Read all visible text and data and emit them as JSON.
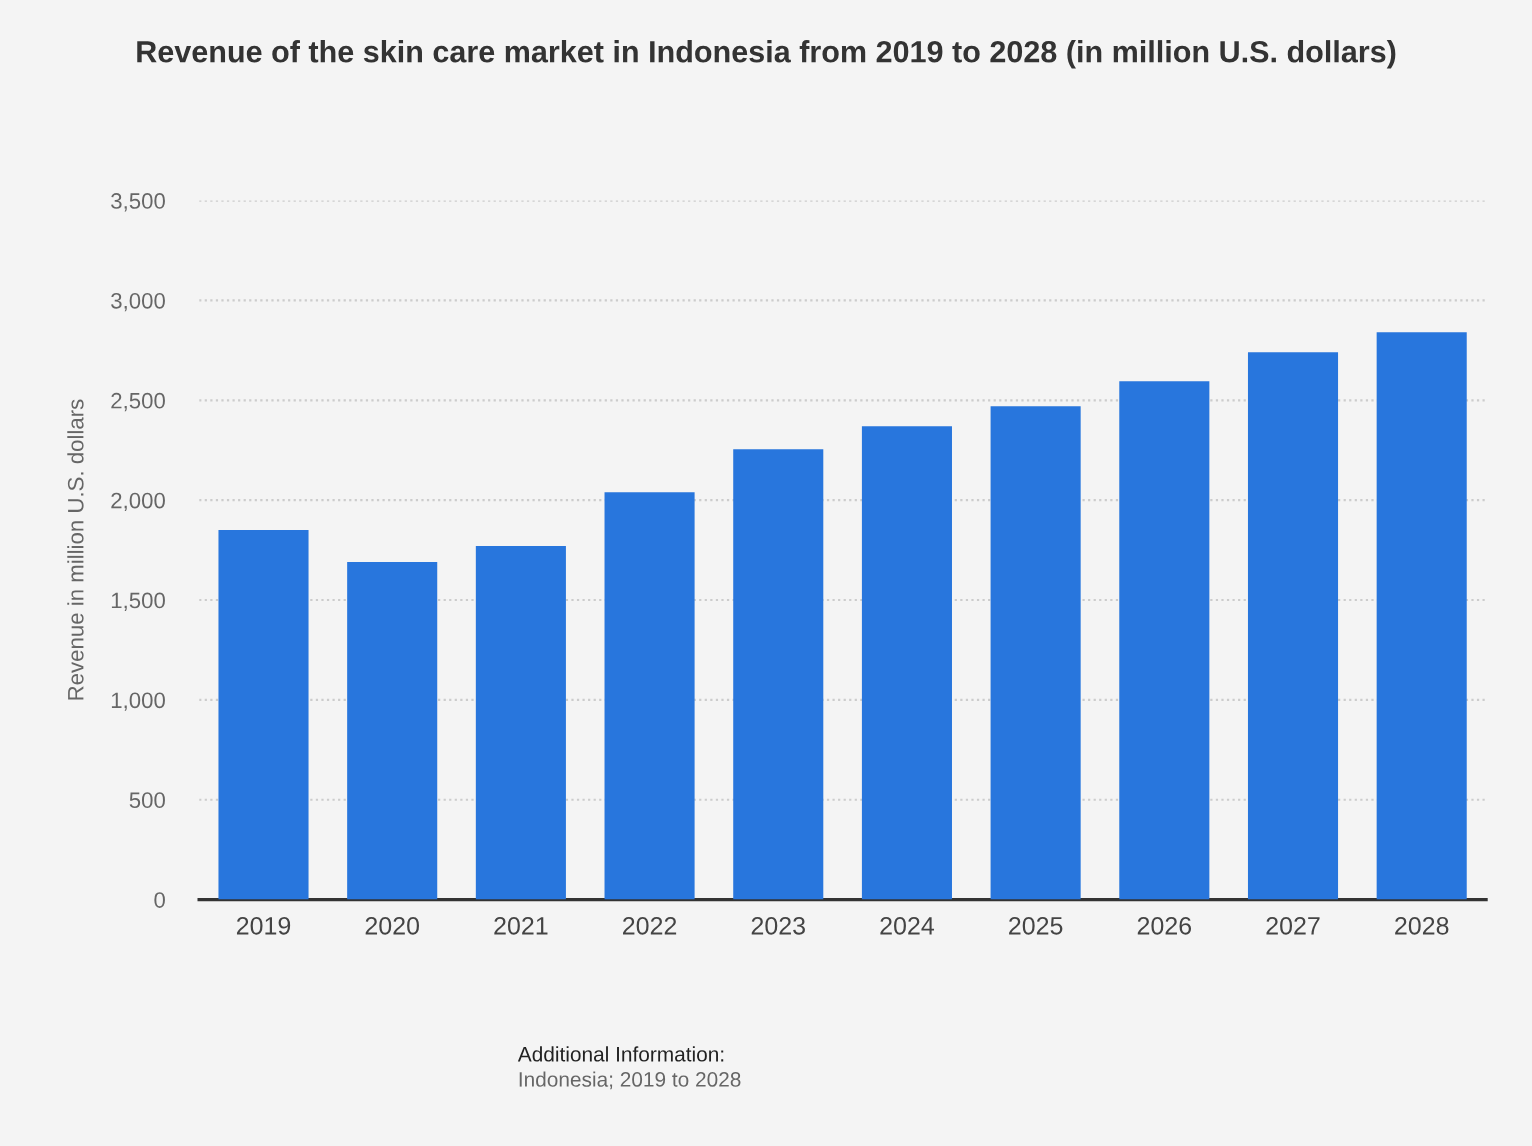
{
  "chart_data": {
    "type": "bar",
    "title": "Revenue of the skin care market in Indonesia from 2019 to 2028 (in million U.S. dollars)",
    "ylabel": "Revenue in million U.S. dollars",
    "categories": [
      "2019",
      "2020",
      "2021",
      "2022",
      "2023",
      "2024",
      "2025",
      "2026",
      "2027",
      "2028"
    ],
    "values": [
      1850,
      1690,
      1770,
      2040,
      2255,
      2370,
      2470,
      2595,
      2740,
      2840
    ],
    "color": "#2876dd",
    "ylim": [
      0,
      3500
    ],
    "yticks": [
      {
        "value": 0,
        "label": "0"
      },
      {
        "value": 500,
        "label": "500"
      },
      {
        "value": 1000,
        "label": "1,000"
      },
      {
        "value": 1500,
        "label": "1,500"
      },
      {
        "value": 2000,
        "label": "2,000"
      },
      {
        "value": 2500,
        "label": "2,500"
      },
      {
        "value": 3000,
        "label": "3,000"
      },
      {
        "value": 3500,
        "label": "3,500"
      }
    ],
    "grid": "y",
    "annotations": [
      "Additional Information:",
      "Indonesia; 2019 to 2028"
    ]
  }
}
